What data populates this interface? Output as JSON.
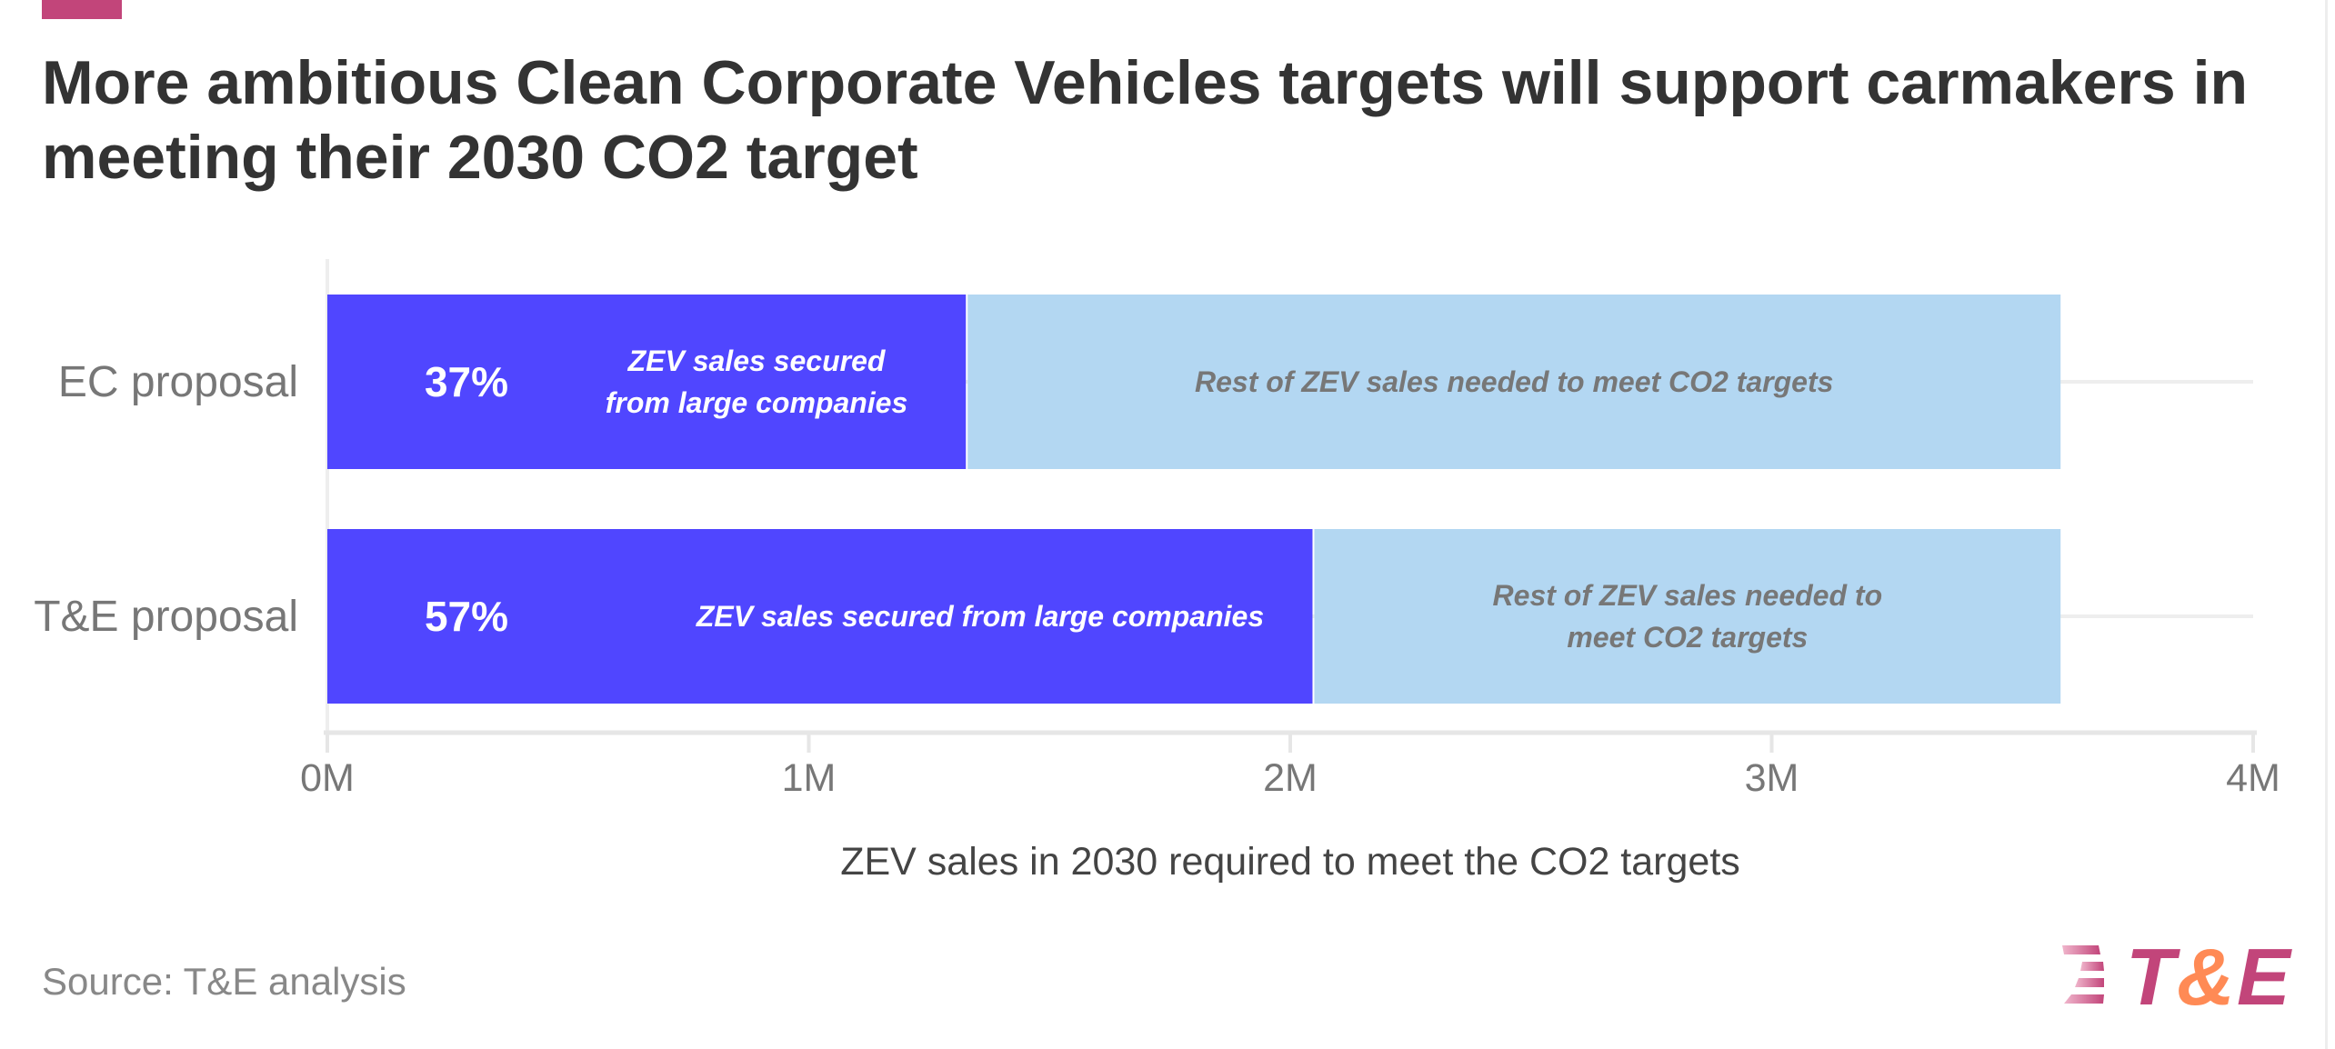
{
  "title": "More ambitious Clean Corporate Vehicles targets will support carmakers in meeting their 2030 CO2 target",
  "source": "Source: T&E analysis",
  "logo_text": "T&E",
  "colors": {
    "secured": "#5046ff",
    "rest": "#b3d7f2",
    "accent": "#c2457a",
    "logo_amp": "#ff8a55"
  },
  "chart_data": {
    "type": "bar",
    "orientation": "horizontal",
    "stacked": true,
    "categories": [
      "EC proposal",
      "T&E proposal"
    ],
    "series": [
      {
        "name": "ZEV sales secured from large companies",
        "values": [
          1.33,
          2.05
        ],
        "color": "#5046ff",
        "pct_labels": [
          "37%",
          "57%"
        ],
        "segment_labels": [
          [
            "ZEV sales secured",
            "from large companies"
          ],
          [
            "ZEV sales secured from large companies"
          ]
        ]
      },
      {
        "name": "Rest of ZEV sales needed to meet CO2 targets",
        "values": [
          2.27,
          1.55
        ],
        "color": "#b3d7f2",
        "segment_labels": [
          [
            "Rest of ZEV sales needed to meet CO2 targets"
          ],
          [
            "Rest of ZEV sales needed to",
            "meet CO2 targets"
          ]
        ]
      }
    ],
    "xlabel": "ZEV sales in 2030 required to meet the CO2 targets",
    "xlim": [
      0,
      4
    ],
    "xticks": [
      0,
      1,
      2,
      3,
      4
    ],
    "xtick_labels": [
      "0M",
      "1M",
      "2M",
      "3M",
      "4M"
    ],
    "grid": true,
    "legend": "none"
  }
}
